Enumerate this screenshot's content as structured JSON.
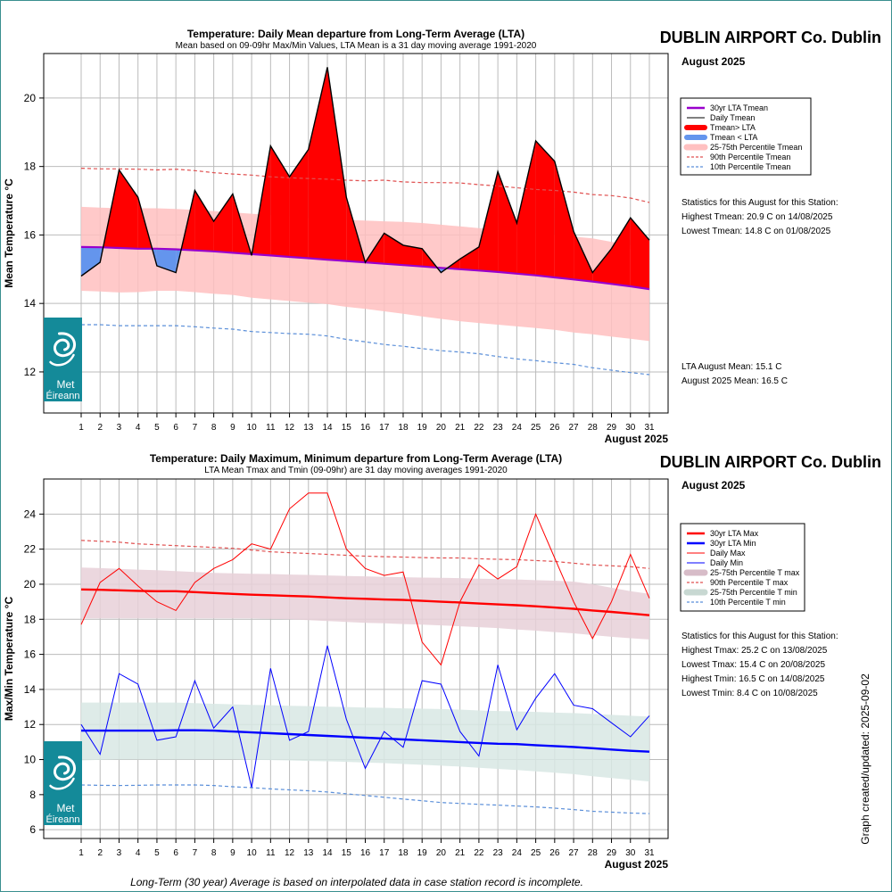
{
  "station": "DUBLIN AIRPORT Co. Dublin",
  "month": "August 2025",
  "updated": "Graph created/updated:  2025-09-02",
  "footnote": "Long-Term (30 year) Average is based on interpolated data in case station record is incomplete.",
  "logo_text": [
    "Met",
    "Éireann"
  ],
  "colors": {
    "red": "#ff0000",
    "blue": "#0000ff",
    "purple": "#9900cc",
    "blueFill": "#6495ed",
    "pink": "#ffc0c0",
    "rose": "#e8d0d8",
    "teal": "#d8e8e4",
    "dashBlue": "#5b8fd9",
    "dashRed": "#e05050",
    "logo": "#148a99"
  },
  "chart_data": [
    {
      "type": "area",
      "title": "Temperature: Daily Mean departure from Long-Term Average (LTA)",
      "subtitle": "Mean based on 09-09hr Max/Min Values, LTA Mean is a 31 day moving average 1991-2020",
      "ylabel": "Mean Temperature °C",
      "xlabel": "August 2025",
      "ylim": [
        10.8,
        21.3
      ],
      "yticks": [
        12,
        14,
        16,
        18,
        20
      ],
      "x": [
        1,
        2,
        3,
        4,
        5,
        6,
        7,
        8,
        9,
        10,
        11,
        12,
        13,
        14,
        15,
        16,
        17,
        18,
        19,
        20,
        21,
        22,
        23,
        24,
        25,
        26,
        27,
        28,
        29,
        30,
        31
      ],
      "grid": true,
      "series": [
        {
          "name": "Daily Tmean",
          "values": [
            14.8,
            15.2,
            17.9,
            17.1,
            15.1,
            14.9,
            17.3,
            16.4,
            17.2,
            15.4,
            18.6,
            17.7,
            18.5,
            20.9,
            17.1,
            15.2,
            16.05,
            15.7,
            15.6,
            14.9,
            15.3,
            15.65,
            17.85,
            16.35,
            18.75,
            18.15,
            16.1,
            14.9,
            15.6,
            16.5,
            15.85
          ]
        },
        {
          "name": "30yr LTA Tmean",
          "values": [
            15.65,
            15.64,
            15.62,
            15.6,
            15.6,
            15.58,
            15.55,
            15.52,
            15.48,
            15.44,
            15.4,
            15.36,
            15.32,
            15.28,
            15.24,
            15.2,
            15.16,
            15.12,
            15.08,
            15.04,
            15.0,
            14.96,
            14.92,
            14.87,
            14.82,
            14.76,
            14.7,
            14.64,
            14.57,
            14.5,
            14.42
          ]
        },
        {
          "name": "90th Percentile Tmean",
          "values": [
            17.95,
            17.93,
            17.93,
            17.92,
            17.9,
            17.92,
            17.88,
            17.82,
            17.78,
            17.75,
            17.7,
            17.67,
            17.65,
            17.63,
            17.6,
            17.58,
            17.6,
            17.55,
            17.53,
            17.53,
            17.52,
            17.47,
            17.43,
            17.38,
            17.33,
            17.3,
            17.25,
            17.18,
            17.15,
            17.08,
            16.95
          ]
        },
        {
          "name": "10th Percentile Tmean",
          "values": [
            13.38,
            13.38,
            13.35,
            13.35,
            13.35,
            13.35,
            13.32,
            13.28,
            13.25,
            13.18,
            13.15,
            13.12,
            13.1,
            13.05,
            12.95,
            12.88,
            12.8,
            12.75,
            12.68,
            12.62,
            12.58,
            12.53,
            12.45,
            12.38,
            12.33,
            12.27,
            12.22,
            12.12,
            12.05,
            11.98,
            11.92
          ]
        },
        {
          "name": "25-75th Percentile Tmean",
          "upper": [
            16.82,
            16.8,
            16.78,
            16.78,
            16.78,
            16.76,
            16.73,
            16.7,
            16.66,
            16.62,
            16.58,
            16.55,
            16.5,
            16.47,
            16.44,
            16.42,
            16.4,
            16.38,
            16.35,
            16.3,
            16.25,
            16.2,
            16.15,
            16.1,
            16.05,
            16.0,
            15.95,
            15.9,
            15.8,
            15.7,
            15.6
          ],
          "lower": [
            14.37,
            14.35,
            14.32,
            14.33,
            14.37,
            14.37,
            14.33,
            14.28,
            14.25,
            14.17,
            14.12,
            14.07,
            14.02,
            13.98,
            13.9,
            13.84,
            13.77,
            13.7,
            13.62,
            13.55,
            13.48,
            13.43,
            13.38,
            13.33,
            13.28,
            13.23,
            13.15,
            13.1,
            13.03,
            12.97,
            12.9
          ]
        }
      ],
      "legend": [
        "30yr LTA Tmean",
        "Daily Tmean",
        "Tmean> LTA",
        "Tmean < LTA",
        "25-75th Percentile Tmean",
        "90th Percentile Tmean",
        "10th Percentile Tmean"
      ],
      "legend_position": "right",
      "stats_heading": "Statistics for this August for this Station:",
      "stats": [
        "Highest Tmean: 20.9 C on 14/08/2025",
        "Lowest Tmean: 14.8 C on 01/08/2025"
      ],
      "means": [
        "LTA August Mean: 15.1 C",
        "August 2025 Mean: 16.5 C"
      ]
    },
    {
      "type": "line",
      "title": "Temperature: Daily Maximum, Minimum departure from Long-Term Average (LTA)",
      "subtitle": "LTA Mean Tmax and Tmin (09-09hr) are 31 day moving averages 1991-2020",
      "ylabel": "Max/Min Temperature °C",
      "xlabel": "August 2025",
      "ylim": [
        5.5,
        26
      ],
      "yticks": [
        6,
        8,
        10,
        12,
        14,
        16,
        18,
        20,
        22,
        24
      ],
      "x": [
        1,
        2,
        3,
        4,
        5,
        6,
        7,
        8,
        9,
        10,
        11,
        12,
        13,
        14,
        15,
        16,
        17,
        18,
        19,
        20,
        21,
        22,
        23,
        24,
        25,
        26,
        27,
        28,
        29,
        30,
        31
      ],
      "grid": true,
      "series": [
        {
          "name": "Daily Max",
          "values": [
            17.7,
            20.1,
            20.9,
            19.9,
            19.0,
            18.5,
            20.1,
            20.9,
            21.4,
            22.3,
            22.0,
            24.3,
            25.2,
            25.2,
            22.0,
            20.9,
            20.5,
            20.7,
            16.7,
            15.4,
            19.0,
            21.1,
            20.3,
            21.0,
            24.0,
            21.5,
            19.0,
            16.9,
            19.0,
            21.7,
            19.2
          ]
        },
        {
          "name": "Daily Min",
          "values": [
            12.0,
            10.3,
            14.9,
            14.3,
            11.1,
            11.3,
            14.5,
            11.8,
            13.0,
            8.4,
            15.2,
            11.1,
            11.6,
            16.5,
            12.3,
            9.5,
            11.6,
            10.7,
            14.5,
            14.3,
            11.6,
            10.2,
            15.4,
            11.7,
            13.5,
            14.9,
            13.1,
            12.9,
            12.1,
            11.3,
            12.5
          ]
        },
        {
          "name": "30yr LTA Max",
          "values": [
            19.7,
            19.68,
            19.65,
            19.62,
            19.6,
            19.6,
            19.55,
            19.5,
            19.45,
            19.4,
            19.37,
            19.33,
            19.3,
            19.25,
            19.2,
            19.17,
            19.13,
            19.1,
            19.05,
            19.0,
            18.96,
            18.9,
            18.85,
            18.8,
            18.74,
            18.67,
            18.6,
            18.5,
            18.42,
            18.33,
            18.23
          ]
        },
        {
          "name": "30yr LTA Min",
          "values": [
            11.65,
            11.65,
            11.65,
            11.65,
            11.65,
            11.67,
            11.67,
            11.65,
            11.6,
            11.55,
            11.5,
            11.45,
            11.4,
            11.35,
            11.3,
            11.25,
            11.2,
            11.15,
            11.1,
            11.05,
            11.0,
            10.95,
            10.9,
            10.88,
            10.82,
            10.77,
            10.72,
            10.65,
            10.57,
            10.5,
            10.45
          ]
        },
        {
          "name": "90th Percentile T max",
          "values": [
            22.5,
            22.45,
            22.4,
            22.3,
            22.25,
            22.2,
            22.15,
            22.1,
            22.05,
            21.95,
            21.85,
            21.8,
            21.75,
            21.7,
            21.65,
            21.6,
            21.57,
            21.55,
            21.52,
            21.5,
            21.5,
            21.45,
            21.42,
            21.4,
            21.35,
            21.3,
            21.2,
            21.1,
            21.05,
            21.0,
            20.9
          ]
        },
        {
          "name": "10th Percentile T min",
          "values": [
            8.55,
            8.53,
            8.52,
            8.53,
            8.55,
            8.55,
            8.55,
            8.52,
            8.45,
            8.4,
            8.33,
            8.27,
            8.22,
            8.15,
            8.05,
            7.95,
            7.85,
            7.75,
            7.65,
            7.55,
            7.5,
            7.45,
            7.4,
            7.35,
            7.3,
            7.23,
            7.15,
            7.05,
            7.0,
            6.95,
            6.92
          ]
        },
        {
          "name": "25-75th Percentile T max",
          "upper": [
            20.95,
            20.92,
            20.88,
            20.83,
            20.8,
            20.75,
            20.7,
            20.65,
            20.62,
            20.6,
            20.58,
            20.55,
            20.53,
            20.5,
            20.47,
            20.45,
            20.42,
            20.4,
            20.38,
            20.37,
            20.35,
            20.32,
            20.3,
            20.27,
            20.23,
            20.2,
            20.15,
            20.0,
            19.8,
            19.6,
            19.45
          ],
          "lower": [
            18.05,
            18.05,
            18.05,
            18.05,
            18.05,
            18.05,
            18.05,
            18.05,
            18.05,
            18.05,
            18.03,
            18.0,
            17.95,
            17.9,
            17.85,
            17.8,
            17.77,
            17.73,
            17.7,
            17.65,
            17.6,
            17.55,
            17.5,
            17.42,
            17.35,
            17.27,
            17.2,
            17.1,
            17.0,
            16.92,
            16.85
          ]
        },
        {
          "name": "25-75th Percentile T min",
          "upper": [
            13.25,
            13.25,
            13.25,
            13.25,
            13.25,
            13.25,
            13.22,
            13.18,
            13.15,
            13.12,
            13.1,
            13.07,
            13.05,
            13.02,
            13.0,
            12.97,
            12.95,
            12.92,
            12.9,
            12.88,
            12.85,
            12.8,
            12.77,
            12.75,
            12.72,
            12.68,
            12.65,
            12.6,
            12.55,
            12.5,
            12.45
          ],
          "lower": [
            9.95,
            9.98,
            10.0,
            10.0,
            10.0,
            10.0,
            10.0,
            10.0,
            10.0,
            9.98,
            9.97,
            9.95,
            9.92,
            9.9,
            9.87,
            9.83,
            9.8,
            9.75,
            9.7,
            9.65,
            9.6,
            9.53,
            9.47,
            9.4,
            9.33,
            9.25,
            9.17,
            9.05,
            8.95,
            8.85,
            8.75
          ]
        }
      ],
      "legend": [
        "30yr LTA Max",
        "30yr LTA Min",
        "Daily Max",
        "Daily Min",
        "25-75th Percentile T max",
        "90th Percentile T max",
        "25-75th Percentile T min",
        "10th Percentile T min"
      ],
      "legend_position": "right",
      "stats_heading": "Statistics for this August for this Station:",
      "stats": [
        "Highest Tmax: 25.2 C on 13/08/2025",
        "Lowest Tmax: 15.4 C on 20/08/2025",
        "Highest Tmin: 16.5 C on 14/08/2025",
        "Lowest Tmin: 8.4 C on 10/08/2025"
      ]
    }
  ]
}
